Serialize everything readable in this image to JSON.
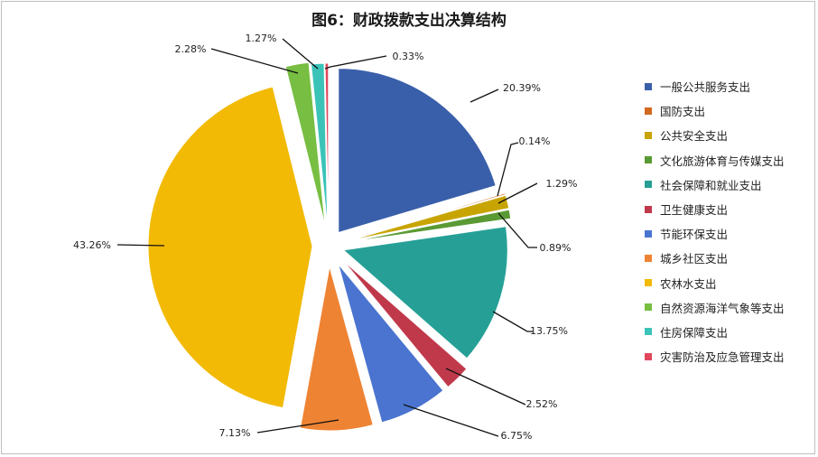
{
  "chart_data": {
    "type": "pie",
    "title": "图6：财政拨款支出决算结构",
    "legend_position": "right",
    "series": [
      {
        "name": "一般公共服务支出",
        "value": 20.39,
        "label": "20.39%",
        "color": "#3A5FAA"
      },
      {
        "name": "国防支出",
        "value": 0.14,
        "label": "0.14%",
        "color": "#D2691E"
      },
      {
        "name": "公共安全支出",
        "value": 1.29,
        "label": "1.29%",
        "color": "#C8A400"
      },
      {
        "name": "文化旅游体育与传媒支出",
        "value": 0.89,
        "label": "0.89%",
        "color": "#5A9A34"
      },
      {
        "name": "社会保障和就业支出",
        "value": 13.75,
        "label": "13.75%",
        "color": "#26A096"
      },
      {
        "name": "卫生健康支出",
        "value": 2.52,
        "label": "2.52%",
        "color": "#C0394B"
      },
      {
        "name": "节能环保支出",
        "value": 6.75,
        "label": "6.75%",
        "color": "#4A74D0"
      },
      {
        "name": "城乡社区支出",
        "value": 7.13,
        "label": "7.13%",
        "color": "#EE8333"
      },
      {
        "name": "农林水支出",
        "value": 43.26,
        "label": "43.26%",
        "color": "#F2BA05"
      },
      {
        "name": "自然资源海洋气象等支出",
        "value": 2.28,
        "label": "2.28%",
        "color": "#77BE42"
      },
      {
        "name": "住房保障支出",
        "value": 1.27,
        "label": "1.27%",
        "color": "#3BC3B8"
      },
      {
        "name": "灾害防治及应急管理支出",
        "value": 0.33,
        "label": "0.33%",
        "color": "#E0475C"
      }
    ]
  }
}
